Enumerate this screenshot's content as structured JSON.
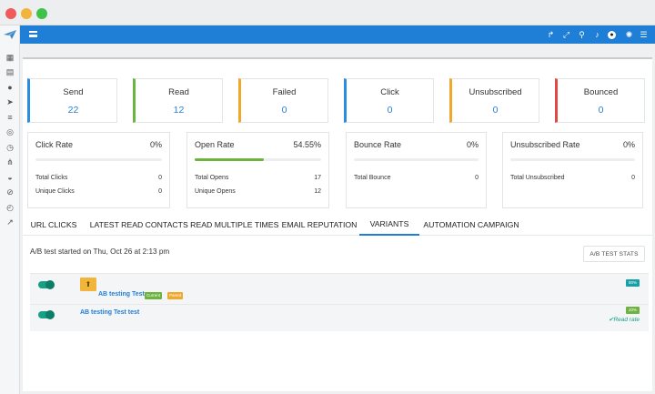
{
  "window": {
    "controls": [
      "close",
      "minimize",
      "maximize"
    ]
  },
  "sidebar": {
    "logo_icon": "paper-plane-logo",
    "items": [
      {
        "icon": "dashboard-icon",
        "glyph": "▦"
      },
      {
        "icon": "calendar-icon",
        "glyph": "▤"
      },
      {
        "icon": "user-icon",
        "glyph": "●"
      },
      {
        "icon": "send-icon",
        "glyph": "➤"
      },
      {
        "icon": "database-icon",
        "glyph": "≡"
      },
      {
        "icon": "target-icon",
        "glyph": "◎"
      },
      {
        "icon": "clock-icon",
        "glyph": "◷"
      },
      {
        "icon": "sitemap-icon",
        "glyph": "⋔"
      },
      {
        "icon": "gauge-icon",
        "glyph": "◒"
      },
      {
        "icon": "block-icon",
        "glyph": "⊘"
      },
      {
        "icon": "history-icon",
        "glyph": "◴"
      },
      {
        "icon": "chart-icon",
        "glyph": "↗"
      }
    ]
  },
  "topbar": {
    "icons": [
      {
        "name": "share-icon",
        "glyph": "↱"
      },
      {
        "name": "fullscreen-icon",
        "glyph": "⤢"
      },
      {
        "name": "search-icon",
        "glyph": "⚲"
      },
      {
        "name": "bell-icon",
        "glyph": "♪"
      },
      {
        "name": "avatar",
        "glyph": "●"
      },
      {
        "name": "gear-icon",
        "glyph": "✺"
      },
      {
        "name": "list-icon",
        "glyph": "☰"
      }
    ]
  },
  "stats": [
    {
      "label": "Send",
      "value": "22",
      "color": "#2a8ee0"
    },
    {
      "label": "Read",
      "value": "12",
      "color": "#6db33f"
    },
    {
      "label": "Failed",
      "value": "0",
      "color": "#f0a82a"
    },
    {
      "label": "Click",
      "value": "0",
      "color": "#2a8ee0"
    },
    {
      "label": "Unsubscribed",
      "value": "0",
      "color": "#f0a82a"
    },
    {
      "label": "Bounced",
      "value": "0",
      "color": "#e04848"
    }
  ],
  "rates": [
    {
      "label": "Click Rate",
      "value": "0%",
      "fill": 0,
      "rows": [
        {
          "label": "Total Clicks",
          "value": "0"
        },
        {
          "label": "Unique Clicks",
          "value": "0"
        }
      ]
    },
    {
      "label": "Open Rate",
      "value": "54.55%",
      "fill": 0.5455,
      "rows": [
        {
          "label": "Total Opens",
          "value": "17"
        },
        {
          "label": "Unique Opens",
          "value": "12"
        }
      ]
    },
    {
      "label": "Bounce Rate",
      "value": "0%",
      "fill": 0,
      "rows": [
        {
          "label": "Total Bounce",
          "value": "0"
        }
      ]
    },
    {
      "label": "Unsubscribed Rate",
      "value": "0%",
      "fill": 0,
      "rows": [
        {
          "label": "Total Unsubscribed",
          "value": "0"
        }
      ]
    }
  ],
  "tabs": [
    {
      "label": "URL CLICKS",
      "active": false
    },
    {
      "label": "LATEST READ",
      "active": false
    },
    {
      "label": "CONTACTS READ MULTIPLE TIMES",
      "active": false
    },
    {
      "label": "EMAIL REPUTATION",
      "active": false
    },
    {
      "label": "VARIANTS",
      "active": true
    },
    {
      "label": "AUTOMATION CAMPAIGN",
      "active": false
    }
  ],
  "ab": {
    "title": "A/B test started on Thu, Oct 26 at 2:13 pm",
    "stats_button": "A/B TEST STATS",
    "variants": [
      {
        "name": "AB testing Test",
        "badges": [
          "Current",
          "Parent"
        ],
        "percent": "80%",
        "winner": true,
        "winner_icon": "trophy-icon",
        "toggle_on": true
      },
      {
        "name": "AB testing Test test",
        "badges": [],
        "percent": "20%",
        "winner": false,
        "note": "Read rate",
        "toggle_on": true
      }
    ]
  }
}
